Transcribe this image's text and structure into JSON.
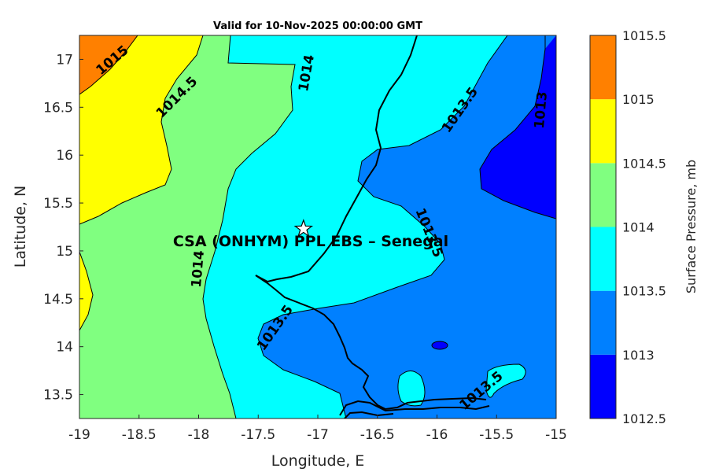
{
  "chart_data": {
    "type": "contour-map",
    "title": "Valid for 10-Nov-2025 00:00:00 GMT",
    "xlabel": "Longitude, E",
    "ylabel": "Latitude, N",
    "xlim": [
      -19,
      -15
    ],
    "ylim": [
      13.25,
      17.25
    ],
    "x_ticks": [
      "-19",
      "-18.5",
      "-18",
      "-17.5",
      "-17",
      "-16.5",
      "-16",
      "-15.5",
      "-15"
    ],
    "y_ticks": [
      "17",
      "16.5",
      "16",
      "15.5",
      "15",
      "14.5",
      "14",
      "13.5"
    ],
    "colorbar": {
      "label": "Surface Pressure, mb",
      "levels": [
        "1012.5",
        "1013",
        "1013.5",
        "1014",
        "1014.5",
        "1015",
        "1015.5"
      ],
      "colors": [
        "#0000ff",
        "#0080ff",
        "#00ffff",
        "#80ff80",
        "#ffff00",
        "#ff8000",
        "#ff0000"
      ]
    },
    "contour_labels": [
      {
        "text": "1015",
        "lon": -18.75,
        "lat": 16.97
      },
      {
        "text": "1014.5",
        "lon": -18.2,
        "lat": 16.5
      },
      {
        "text": "1014",
        "lon": -17.08,
        "lat": 16.95
      },
      {
        "text": "1014",
        "lon": -18.0,
        "lat": 14.78
      },
      {
        "text": "1013.5",
        "lon": -15.85,
        "lat": 16.4
      },
      {
        "text": "1013",
        "lon": -15.12,
        "lat": 16.45
      },
      {
        "text": "1013.5",
        "lon": -16.1,
        "lat": 15.16
      },
      {
        "text": "1013.5",
        "lon": -17.35,
        "lat": 14.17
      },
      {
        "text": "1013.5",
        "lon": -15.62,
        "lat": 13.52
      }
    ],
    "site": {
      "name": "CSA (ONHYM) PPL EBS  – Senegal",
      "lon": -17.12,
      "lat": 15.23
    }
  }
}
